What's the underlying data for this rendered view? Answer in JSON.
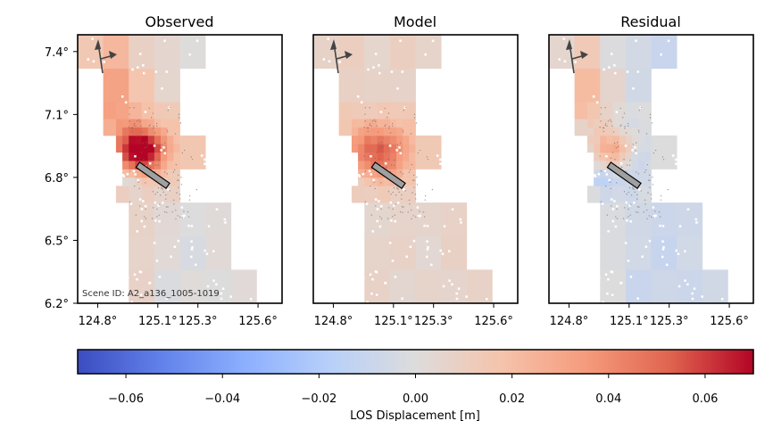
{
  "chart_data": [
    {
      "type": "heatmap",
      "title": "Observed",
      "annotation": "Scene ID: A2_a136_1005-1019",
      "xlim": [
        124.7,
        125.72
      ],
      "ylim": [
        6.2,
        7.48
      ],
      "xticks": [
        124.8,
        125.1,
        125.3,
        125.6
      ],
      "xtick_labels": [
        "124.8°",
        "125.1°",
        "125.3°",
        "125.6°"
      ],
      "yticks": [
        7.4,
        7.1,
        6.8,
        6.5,
        6.2
      ],
      "ytick_labels": [
        "7.4°",
        "7.1°",
        "6.8°",
        "6.5°",
        "6.2°"
      ],
      "fault_trace": [
        [
          125.0,
          6.86
        ],
        [
          125.15,
          6.76
        ]
      ],
      "peak": {
        "lon": 125.02,
        "lat": 6.93,
        "value": 0.065
      },
      "field_description": "positive LOS displacement near fault centre; small negative patches southwest of fault; near zero in southeast"
    },
    {
      "type": "heatmap",
      "title": "Model",
      "xlim": [
        124.7,
        125.72
      ],
      "ylim": [
        6.2,
        7.48
      ],
      "xticks": [
        124.8,
        125.1,
        125.3,
        125.6
      ],
      "xtick_labels": [
        "124.8°",
        "125.1°",
        "125.3°",
        "125.6°"
      ],
      "fault_trace": [
        [
          125.0,
          6.86
        ],
        [
          125.15,
          6.76
        ]
      ],
      "peak": {
        "lon": 125.02,
        "lat": 6.92,
        "value": 0.04
      }
    },
    {
      "type": "heatmap",
      "title": "Residual",
      "xlim": [
        124.7,
        125.72
      ],
      "ylim": [
        6.2,
        7.48
      ],
      "xticks": [
        124.8,
        125.1,
        125.3,
        125.6
      ],
      "xtick_labels": [
        "124.8°",
        "125.1°",
        "125.3°",
        "125.6°"
      ],
      "fault_trace": [
        [
          125.0,
          6.86
        ],
        [
          125.15,
          6.76
        ]
      ],
      "peak": {
        "lon": 125.02,
        "lat": 6.93,
        "value": 0.025
      }
    }
  ],
  "colorbar": {
    "label": "LOS Displacement [m]",
    "colormap": "coolwarm",
    "range": [
      -0.07,
      0.07
    ],
    "ticks": [
      -0.06,
      -0.04,
      -0.02,
      0.0,
      0.02,
      0.04,
      0.06
    ],
    "tick_labels": [
      "−0.06",
      "−0.04",
      "−0.02",
      "0.00",
      "0.02",
      "0.04",
      "0.06"
    ]
  },
  "colors": {
    "low": "#3b4cc0",
    "mid": "#dddddd",
    "high": "#b40426",
    "fault_fill": "#a0a0a0"
  },
  "icons": {
    "orbit_arrow": "flight-direction-arrow-icon",
    "look_arrow": "look-direction-arrow-icon"
  }
}
